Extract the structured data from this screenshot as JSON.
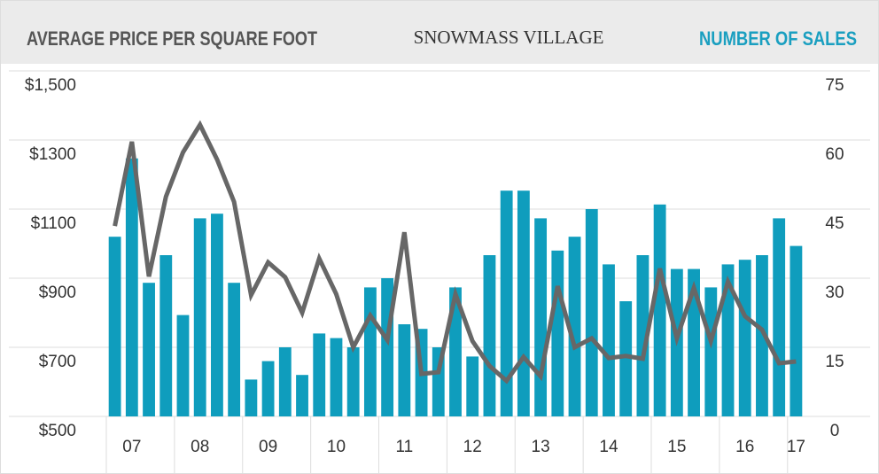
{
  "chart_data": {
    "type": "bar_line",
    "title": "AVERAGE PRICE PER SQUARE FOOT",
    "subtitle": "SNOWMASS VILLAGE",
    "y2_title": "NUMBER OF SALES",
    "categories": [
      null,
      "07",
      null,
      null,
      null,
      "08",
      null,
      null,
      null,
      "09",
      null,
      null,
      null,
      "10",
      null,
      null,
      null,
      "11",
      null,
      null,
      null,
      "12",
      null,
      null,
      null,
      "13",
      null,
      null,
      null,
      "14",
      null,
      null,
      null,
      "15",
      null,
      null,
      null,
      "16",
      null,
      null,
      "17"
    ],
    "series": [
      {
        "name": "NUMBER OF SALES",
        "kind": "bar",
        "axis": "y2",
        "color": "#0f9dbd",
        "values": [
          39,
          56,
          29,
          35,
          22,
          43,
          44,
          29,
          8,
          12,
          15,
          9,
          18,
          17,
          15,
          28,
          30,
          20,
          19,
          15,
          28,
          13,
          35,
          49,
          49,
          43,
          36,
          39,
          45,
          33,
          25,
          35,
          46,
          32,
          32,
          28,
          33,
          34,
          35,
          43,
          37
        ]
      },
      {
        "name": "AVERAGE PRICE PER SQUARE FOOT",
        "kind": "line",
        "axis": "y",
        "color": "#676767",
        "values": [
          1051,
          1295,
          905,
          1136,
          1264,
          1344,
          1244,
          1121,
          851,
          946,
          903,
          800,
          957,
          854,
          700,
          792,
          721,
          1033,
          623,
          628,
          854,
          718,
          646,
          603,
          672,
          616,
          877,
          700,
          726,
          669,
          675,
          667,
          928,
          726,
          872,
          718,
          890,
          790,
          751,
          654,
          659
        ]
      }
    ],
    "ylim": [
      500,
      1500
    ],
    "yticks": [
      {
        "value": 500,
        "label": "$500"
      },
      {
        "value": 700,
        "label": "$700"
      },
      {
        "value": 900,
        "label": "$900"
      },
      {
        "value": 1100,
        "label": "$1100"
      },
      {
        "value": 1300,
        "label": "$1300"
      },
      {
        "value": 1500,
        "label": "$1,500"
      }
    ],
    "y2lim": [
      0,
      75
    ],
    "y2ticks": [
      0,
      15,
      30,
      45,
      60,
      75
    ],
    "grid": true
  }
}
